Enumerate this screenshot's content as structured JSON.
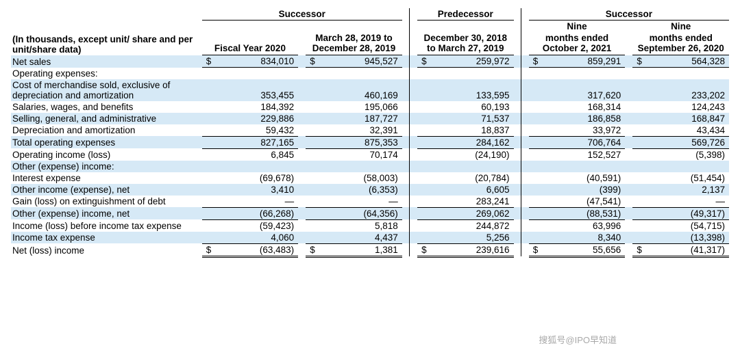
{
  "meta": {
    "stripe_color": "#d6e9f6",
    "text_color": "#000000",
    "font_family": "Arial",
    "font_size_pt": 10,
    "row_label_note": "(In thousands, except unit/ share and per unit/share data)"
  },
  "groups": {
    "g1": "Successor",
    "g2": "Predecessor",
    "g3": "Successor"
  },
  "cols": {
    "c1": "Fiscal Year 2020",
    "c2": "March 28, 2019 to December 28, 2019",
    "c3": "December 30, 2018 to March 27, 2019",
    "c4a": "Nine",
    "c4b": "months ended October 2, 2021",
    "c5a": "Nine",
    "c5b": "months ended September 26, 2020"
  },
  "rows": [
    {
      "label": "Net sales",
      "stripe": true,
      "c1cur": "$",
      "c1": "834,010",
      "c2cur": "$",
      "c2": "945,527",
      "c3cur": "$",
      "c3": "259,972",
      "c4cur": "$",
      "c4": "859,291",
      "c5cur": "$",
      "c5": "564,328",
      "under": true
    },
    {
      "label": "Operating expenses:"
    },
    {
      "label": "Cost of merchandise sold, exclusive of depreciation and amortization",
      "stripe": true,
      "wrap": true,
      "c1": "353,455",
      "c2": "460,169",
      "c3": "133,595",
      "c4": "317,620",
      "c5": "233,202"
    },
    {
      "label": "Salaries, wages, and benefits",
      "c1": "184,392",
      "c2": "195,066",
      "c3": "60,193",
      "c4": "168,314",
      "c5": "124,243"
    },
    {
      "label": "Selling, general, and administrative",
      "stripe": true,
      "c1": "229,886",
      "c2": "187,727",
      "c3": "71,537",
      "c4": "186,858",
      "c5": "168,847"
    },
    {
      "label": "Depreciation and amortization",
      "c1": "59,432",
      "c2": "32,391",
      "c3": "18,837",
      "c4": "33,972",
      "c5": "43,434",
      "under": true
    },
    {
      "label": "Total operating expenses",
      "stripe": true,
      "c1": "827,165",
      "c2": "875,353",
      "c3": "284,162",
      "c4": "706,764",
      "c5": "569,726",
      "under": true
    },
    {
      "label": "Operating income (loss)",
      "c1": "6,845",
      "c2": "70,174",
      "c3": "(24,190)",
      "c4": "152,527",
      "c5": "(5,398)"
    },
    {
      "label": "Other (expense) income:",
      "stripe": true
    },
    {
      "label": "Interest expense",
      "c1": "(69,678)",
      "c2": "(58,003)",
      "c3": "(20,784)",
      "c4": "(40,591)",
      "c5": "(51,454)"
    },
    {
      "label": "Other income (expense), net",
      "stripe": true,
      "c1": "3,410",
      "c2": "(6,353)",
      "c3": "6,605",
      "c4": "(399)",
      "c5": "2,137"
    },
    {
      "label": "Gain (loss) on extinguishment of debt",
      "c1": "—",
      "c2": "—",
      "c3": "283,241",
      "c4": "(47,541)",
      "c5": "—",
      "under": true
    },
    {
      "label": "Other (expense) income, net",
      "stripe": true,
      "c1": "(66,268)",
      "c2": "(64,356)",
      "c3": "269,062",
      "c4": "(88,531)",
      "c5": "(49,317)",
      "under": true
    },
    {
      "label": "Income (loss) before income tax expense",
      "wrap": true,
      "c1": "(59,423)",
      "c2": "5,818",
      "c3": "244,872",
      "c4": "63,996",
      "c5": "(54,715)"
    },
    {
      "label": "Income tax expense",
      "stripe": true,
      "c1": "4,060",
      "c2": "4,437",
      "c3": "5,256",
      "c4": "8,340",
      "c5": "(13,398)",
      "under": true
    },
    {
      "label": "Net (loss) income",
      "c1cur": "$",
      "c1": "(63,483)",
      "c2cur": "$",
      "c2": "1,381",
      "c3cur": "$",
      "c3": "239,616",
      "c4cur": "$",
      "c4": "55,656",
      "c5cur": "$",
      "c5": "(41,317)",
      "dunder": true
    }
  ],
  "watermark": "搜狐号@IPO早知道"
}
